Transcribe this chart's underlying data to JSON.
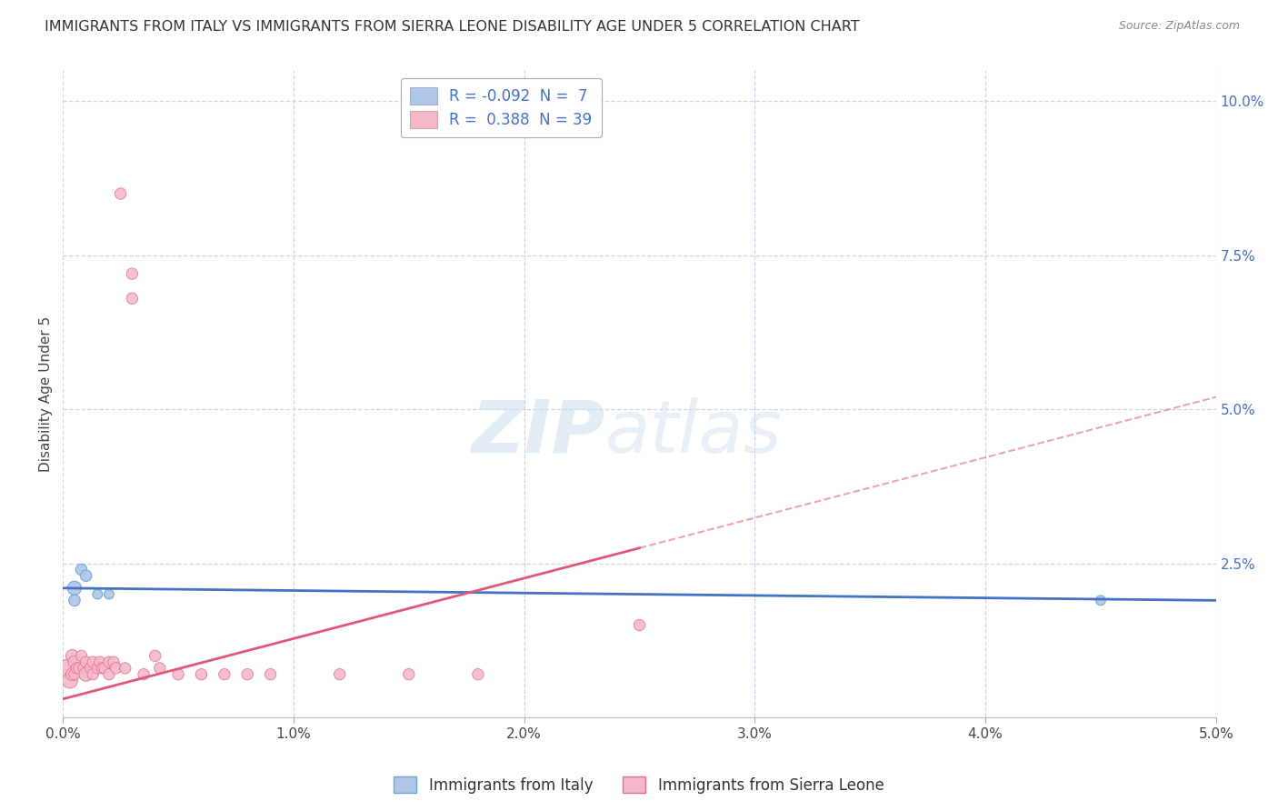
{
  "title": "IMMIGRANTS FROM ITALY VS IMMIGRANTS FROM SIERRA LEONE DISABILITY AGE UNDER 5 CORRELATION CHART",
  "source": "Source: ZipAtlas.com",
  "ylabel": "Disability Age Under 5",
  "xlim": [
    0.0,
    0.05
  ],
  "ylim": [
    0.0,
    0.105
  ],
  "xticks": [
    0.0,
    0.01,
    0.02,
    0.03,
    0.04,
    0.05
  ],
  "xtick_labels": [
    "0.0%",
    "1.0%",
    "2.0%",
    "3.0%",
    "4.0%",
    "5.0%"
  ],
  "yticks_right": [
    0.0,
    0.025,
    0.05,
    0.075,
    0.1
  ],
  "ytick_labels_right": [
    "",
    "2.5%",
    "5.0%",
    "7.5%",
    "10.0%"
  ],
  "italy_color": "#aec6e8",
  "italy_edge_color": "#6fa0d0",
  "sierra_leone_color": "#f4b8c8",
  "sierra_leone_edge_color": "#e07090",
  "italy_R": -0.092,
  "italy_N": 7,
  "sierra_leone_R": 0.388,
  "sierra_leone_N": 39,
  "italy_line_color": "#4472c4",
  "sierra_leone_line_color": "#e05878",
  "watermark_zip": "ZIP",
  "watermark_atlas": "atlas",
  "background_color": "#ffffff",
  "grid_color": "#c8d8e8",
  "italy_x": [
    0.0005,
    0.0005,
    0.0008,
    0.001,
    0.0015,
    0.002,
    0.045
  ],
  "italy_y": [
    0.021,
    0.019,
    0.024,
    0.023,
    0.02,
    0.02,
    0.019
  ],
  "italy_sizes": [
    120,
    80,
    80,
    80,
    60,
    60,
    60
  ],
  "sl_x": [
    0.0002,
    0.0003,
    0.0004,
    0.0004,
    0.0005,
    0.0005,
    0.0006,
    0.0007,
    0.0008,
    0.0009,
    0.001,
    0.001,
    0.0012,
    0.0013,
    0.0013,
    0.0015,
    0.0016,
    0.0017,
    0.0018,
    0.002,
    0.002,
    0.0022,
    0.0023,
    0.0025,
    0.0027,
    0.003,
    0.003,
    0.0035,
    0.004,
    0.0042,
    0.005,
    0.006,
    0.007,
    0.008,
    0.009,
    0.012,
    0.015,
    0.018,
    0.025
  ],
  "sl_y": [
    0.008,
    0.006,
    0.01,
    0.007,
    0.009,
    0.007,
    0.008,
    0.008,
    0.01,
    0.008,
    0.007,
    0.009,
    0.008,
    0.009,
    0.007,
    0.008,
    0.009,
    0.008,
    0.008,
    0.009,
    0.007,
    0.009,
    0.008,
    0.085,
    0.008,
    0.072,
    0.068,
    0.007,
    0.01,
    0.008,
    0.007,
    0.007,
    0.007,
    0.007,
    0.007,
    0.007,
    0.007,
    0.007,
    0.015
  ],
  "sl_sizes": [
    200,
    150,
    100,
    100,
    100,
    80,
    80,
    80,
    80,
    80,
    120,
    80,
    80,
    80,
    80,
    80,
    80,
    80,
    80,
    80,
    80,
    80,
    80,
    80,
    80,
    80,
    80,
    80,
    80,
    80,
    80,
    80,
    80,
    80,
    80,
    80,
    80,
    80,
    80
  ],
  "legend_italy_label": "R = -0.092  N =  7",
  "legend_sl_label": "R =  0.388  N = 39"
}
